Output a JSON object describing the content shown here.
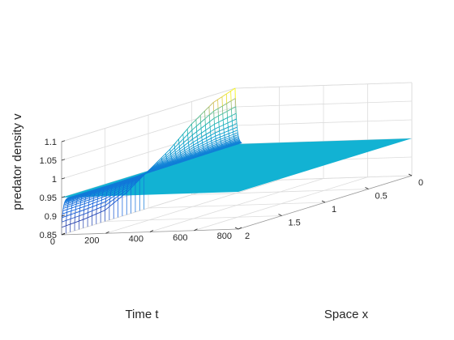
{
  "chart_data": {
    "type": "surface",
    "title": "",
    "xlabel": "Space x",
    "ylabel": "Time t",
    "zlabel": "predator density v",
    "x_ticks": [
      "0",
      "0.5",
      "1",
      "1.5",
      "2"
    ],
    "t_ticks": [
      "0",
      "200",
      "400",
      "600",
      "800"
    ],
    "z_ticks": [
      "0.85",
      "0.9",
      "0.95",
      "1",
      "1.05",
      "1.1"
    ],
    "xlim": [
      0,
      2
    ],
    "tlim": [
      0,
      800
    ],
    "zlim": [
      0.85,
      1.1
    ],
    "grid": true,
    "colormap": "parula",
    "steady_state_v": 0.95,
    "initial_profile": {
      "x": [
        0,
        0.25,
        0.5,
        0.75,
        1.0,
        1.25,
        1.5,
        1.75,
        2.0
      ],
      "v": [
        1.1,
        1.08,
        1.04,
        0.99,
        0.95,
        0.91,
        0.88,
        0.873,
        0.87
      ]
    },
    "transient_end_t": 30,
    "colors": {
      "background": "#ffffff",
      "grid": "#dcdcdc",
      "axis": "#262626",
      "surface_flat": "#12b2d3"
    }
  }
}
